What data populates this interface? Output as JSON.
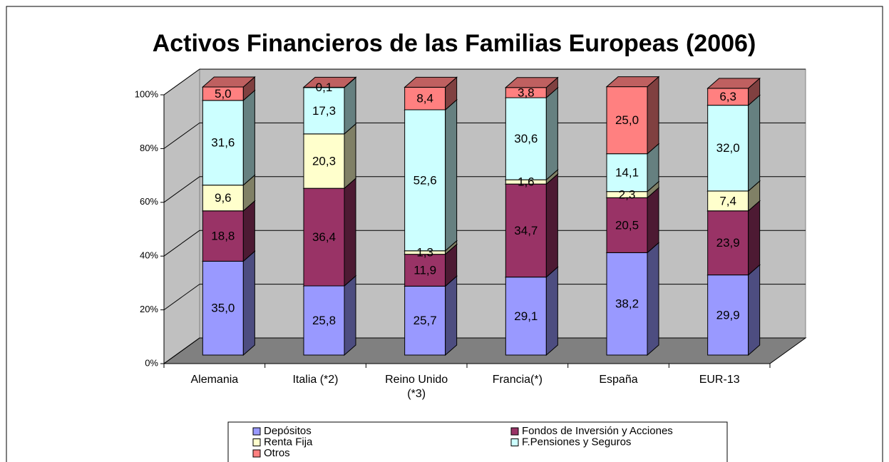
{
  "chart_data": {
    "type": "bar3d_stacked",
    "title": "Activos Financieros de las Familias Europeas (2006)",
    "categories": [
      "Alemania",
      "Italia (*2)",
      "Reino Unido (*3)",
      "Francia(*)",
      "España",
      "EUR-13"
    ],
    "series": [
      {
        "name": "Depósitos",
        "color": "#9999ff",
        "values": [
          35.0,
          25.8,
          25.7,
          29.1,
          38.2,
          29.9
        ],
        "value_labels": [
          "35,0",
          "25,8",
          "25,7",
          "29,1",
          "38,2",
          "29,9"
        ]
      },
      {
        "name": "Fondos de Inversión y Acciones",
        "color": "#993366",
        "values": [
          18.8,
          36.4,
          11.9,
          34.7,
          20.5,
          23.9
        ],
        "value_labels": [
          "18,8",
          "36,4",
          "11,9",
          "34,7",
          "20,5",
          "23,9"
        ]
      },
      {
        "name": "Renta Fija",
        "color": "#ffffcc",
        "values": [
          9.6,
          20.3,
          1.3,
          1.6,
          2.3,
          7.4
        ],
        "value_labels": [
          "9,6",
          "20,3",
          "1,3",
          "1,6",
          "2,3",
          "7,4"
        ]
      },
      {
        "name": "F.Pensiones y Seguros",
        "color": "#ccffff",
        "values": [
          31.6,
          17.3,
          52.6,
          30.6,
          14.1,
          32.0
        ],
        "value_labels": [
          "31,6",
          "17,3",
          "52,6",
          "30,6",
          "14,1",
          "32,0"
        ]
      },
      {
        "name": "Otros",
        "color": "#ff8080",
        "values": [
          5.0,
          0.1,
          8.4,
          3.8,
          25.0,
          6.3
        ],
        "value_labels": [
          "5,0",
          "0,1",
          "8,4",
          "3,8",
          "25,0",
          "6,3"
        ]
      }
    ],
    "ylim": [
      0,
      100
    ],
    "yticks": [
      {
        "value": 0,
        "label": "0%"
      },
      {
        "value": 20,
        "label": "20%"
      },
      {
        "value": 40,
        "label": "40%"
      },
      {
        "value": 60,
        "label": "60%"
      },
      {
        "value": 80,
        "label": "80%"
      },
      {
        "value": 100,
        "label": "100%"
      }
    ],
    "grid": true
  }
}
